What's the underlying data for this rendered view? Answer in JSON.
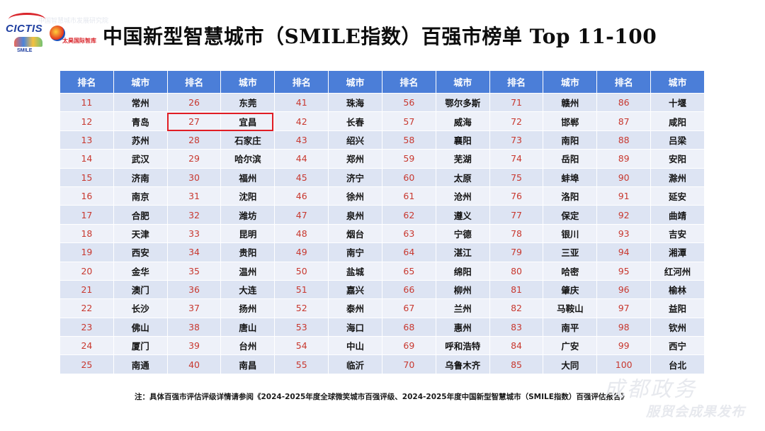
{
  "header": {
    "title": "中国新型智慧城市（SMILE指数）百强市榜单 Top 11-100",
    "faint_text": "中国智慧城市发展研究院"
  },
  "logos": {
    "cictis": "CICTIS",
    "cictis_sub": "SMILE",
    "taihu": "太昊国际智库"
  },
  "table": {
    "headers": [
      "排名",
      "城市",
      "排名",
      "城市",
      "排名",
      "城市",
      "排名",
      "城市",
      "排名",
      "城市",
      "排名",
      "城市"
    ],
    "rows": [
      [
        "11",
        "常州",
        "26",
        "东莞",
        "41",
        "珠海",
        "56",
        "鄂尔多斯",
        "71",
        "赣州",
        "86",
        "十堰"
      ],
      [
        "12",
        "青岛",
        "27",
        "宜昌",
        "42",
        "长春",
        "57",
        "威海",
        "72",
        "邯郸",
        "87",
        "咸阳"
      ],
      [
        "13",
        "苏州",
        "28",
        "石家庄",
        "43",
        "绍兴",
        "58",
        "襄阳",
        "73",
        "南阳",
        "88",
        "吕梁"
      ],
      [
        "14",
        "武汉",
        "29",
        "哈尔滨",
        "44",
        "郑州",
        "59",
        "芜湖",
        "74",
        "岳阳",
        "89",
        "安阳"
      ],
      [
        "15",
        "济南",
        "30",
        "福州",
        "45",
        "济宁",
        "60",
        "太原",
        "75",
        "蚌埠",
        "90",
        "滁州"
      ],
      [
        "16",
        "南京",
        "31",
        "沈阳",
        "46",
        "徐州",
        "61",
        "沧州",
        "76",
        "洛阳",
        "91",
        "延安"
      ],
      [
        "17",
        "合肥",
        "32",
        "潍坊",
        "47",
        "泉州",
        "62",
        "遵义",
        "77",
        "保定",
        "92",
        "曲靖"
      ],
      [
        "18",
        "天津",
        "33",
        "昆明",
        "48",
        "烟台",
        "63",
        "宁德",
        "78",
        "银川",
        "93",
        "吉安"
      ],
      [
        "19",
        "西安",
        "34",
        "贵阳",
        "49",
        "南宁",
        "64",
        "湛江",
        "79",
        "三亚",
        "94",
        "湘潭"
      ],
      [
        "20",
        "金华",
        "35",
        "温州",
        "50",
        "盐城",
        "65",
        "绵阳",
        "80",
        "哈密",
        "95",
        "红河州"
      ],
      [
        "21",
        "澳门",
        "36",
        "大连",
        "51",
        "嘉兴",
        "66",
        "柳州",
        "81",
        "肇庆",
        "96",
        "榆林"
      ],
      [
        "22",
        "长沙",
        "37",
        "扬州",
        "52",
        "泰州",
        "67",
        "兰州",
        "82",
        "马鞍山",
        "97",
        "益阳"
      ],
      [
        "23",
        "佛山",
        "38",
        "唐山",
        "53",
        "海口",
        "68",
        "惠州",
        "83",
        "南平",
        "98",
        "钦州"
      ],
      [
        "24",
        "厦门",
        "39",
        "台州",
        "54",
        "中山",
        "69",
        "呼和浩特",
        "84",
        "广安",
        "99",
        "西宁"
      ],
      [
        "25",
        "南通",
        "40",
        "南昌",
        "55",
        "临沂",
        "70",
        "乌鲁木齐",
        "85",
        "大同",
        "100",
        "台北"
      ]
    ]
  },
  "note": "注：具体百强市评估评级详情请参阅《2024-2025年度全球微笑城市百强评级、2024-2025年度中国新型智慧城市（SMILE指数）百强评估报告》",
  "watermark": {
    "script": "成都政务",
    "caption": "服贸会成果发布"
  },
  "colors": {
    "header_bg": "#4b7ed8",
    "rank_text": "#c8382f",
    "highlight_border": "#e11d24"
  }
}
